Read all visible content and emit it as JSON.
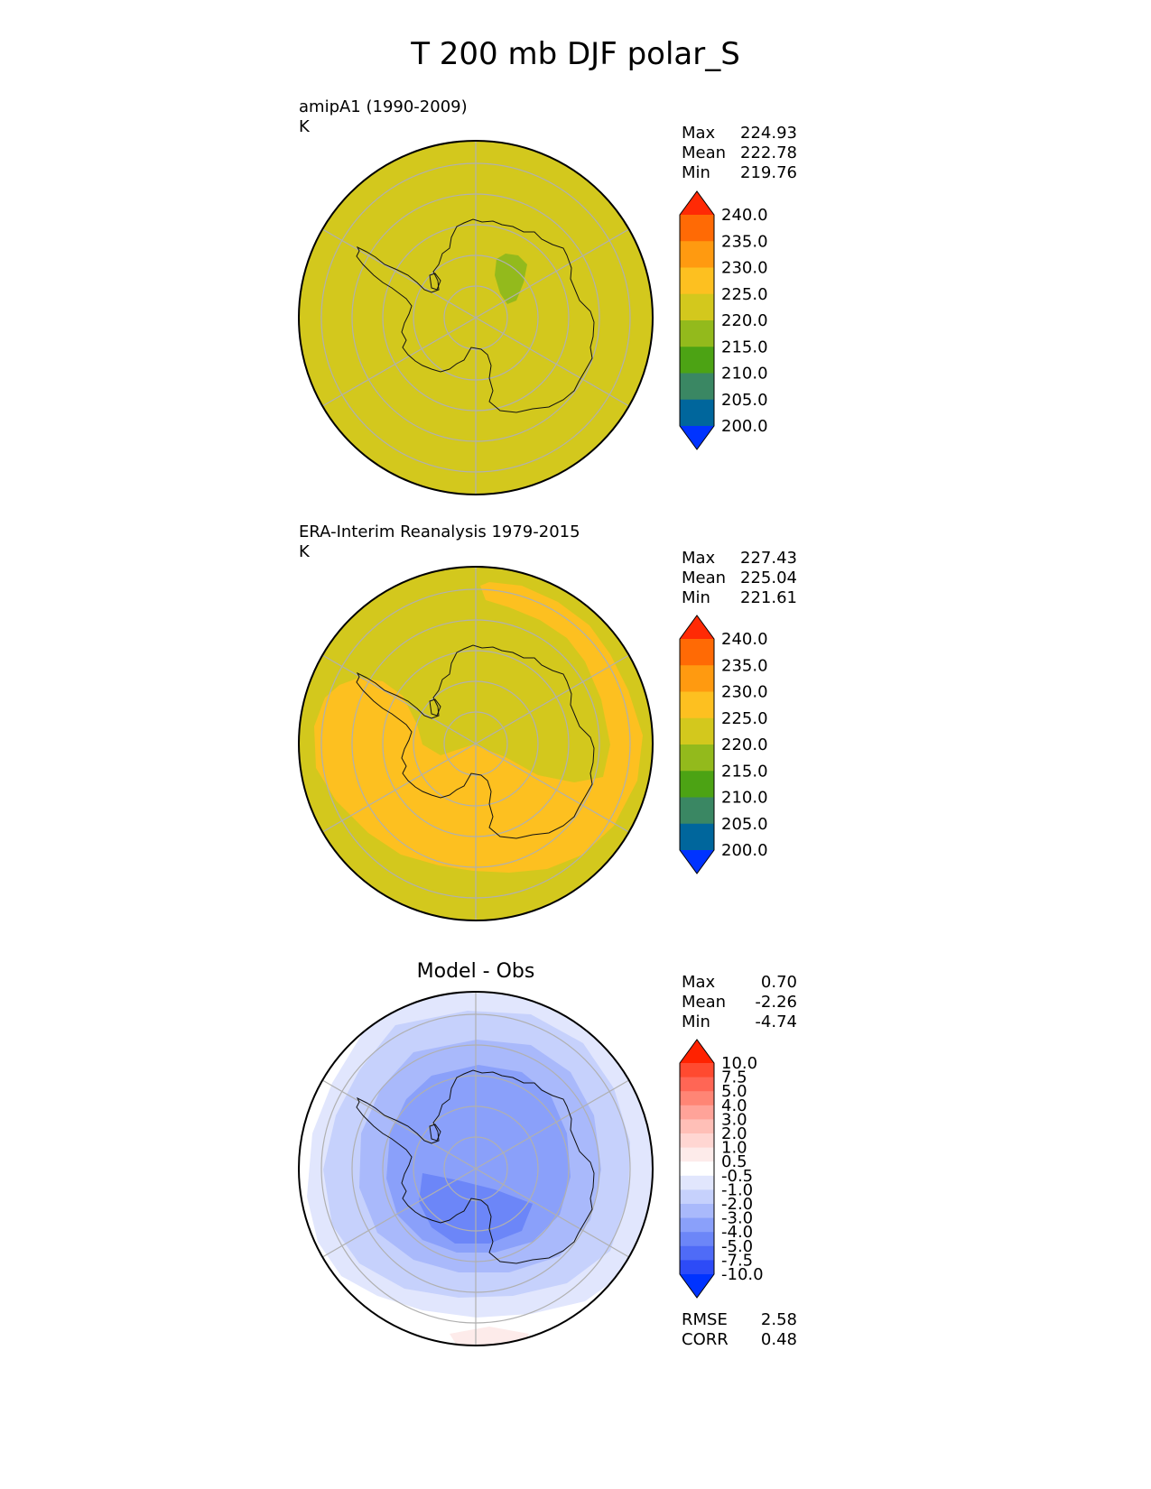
{
  "title": "T 200 mb DJF polar_S",
  "panels": [
    {
      "label": "amipA1 (1990-2009)",
      "units": "K",
      "center": "",
      "stats": [
        {
          "name": "Max",
          "value": "224.93"
        },
        {
          "name": "Mean",
          "value": "222.78"
        },
        {
          "name": "Min",
          "value": "219.76"
        }
      ]
    },
    {
      "label": "ERA-Interim Reanalysis 1979-2015",
      "units": "K",
      "center": "",
      "stats": [
        {
          "name": "Max",
          "value": "227.43"
        },
        {
          "name": "Mean",
          "value": "225.04"
        },
        {
          "name": "Min",
          "value": "221.61"
        }
      ]
    },
    {
      "label": "",
      "units": "",
      "center": "Model - Obs",
      "stats": [
        {
          "name": "Max",
          "value": "0.70"
        },
        {
          "name": "Mean",
          "value": "-2.26"
        },
        {
          "name": "Min",
          "value": "-4.74"
        }
      ],
      "extra_stats": [
        {
          "name": "RMSE",
          "value": "2.58"
        },
        {
          "name": "CORR",
          "value": "0.48"
        }
      ]
    }
  ],
  "colorbars": {
    "temperature": {
      "ticks": [
        "240.0",
        "235.0",
        "230.0",
        "225.0",
        "220.0",
        "215.0",
        "210.0",
        "205.0",
        "200.0"
      ],
      "colors": [
        "#ff2a05",
        "#ff6a05",
        "#ff9a10",
        "#fdc020",
        "#d3c81d",
        "#93ba1c",
        "#4ca314",
        "#3a8763",
        "#00669c",
        "#0033ff"
      ]
    },
    "difference": {
      "ticks": [
        "10.0",
        "7.5",
        "5.0",
        "4.0",
        "3.0",
        "2.0",
        "1.0",
        "0.5",
        "-0.5",
        "-1.0",
        "-2.0",
        "-3.0",
        "-4.0",
        "-5.0",
        "-7.5",
        "-10.0"
      ],
      "colors": [
        "#ff2200",
        "#ff4a30",
        "#ff6655",
        "#ff8575",
        "#ffa399",
        "#ffbfb7",
        "#ffd6d2",
        "#fdebea",
        "#ffffff",
        "#e1e6fd",
        "#c6d1fc",
        "#a9b9fb",
        "#8aa0fa",
        "#6c86f8",
        "#4f6bf7",
        "#2d4bf7",
        "#0033ff"
      ]
    }
  },
  "chart_data": [
    {
      "type": "heatmap",
      "projection": "south polar stereographic",
      "title": "amipA1 (1990-2009)",
      "units": "K",
      "stats": {
        "max": 224.93,
        "mean": 222.78,
        "min": 219.76
      },
      "colorbar_levels": [
        200,
        205,
        210,
        215,
        220,
        225,
        230,
        235,
        240
      ],
      "field": "nearly uniform 220-225 K everywhere; small 215-220 K patch over East Antarctica"
    },
    {
      "type": "heatmap",
      "projection": "south polar stereographic",
      "title": "ERA-Interim Reanalysis 1979-2015",
      "units": "K",
      "stats": {
        "max": 227.43,
        "mean": 225.04,
        "min": 221.61
      },
      "colorbar_levels": [
        200,
        205,
        210,
        215,
        220,
        225,
        230,
        235,
        240
      ],
      "field": "220-225 K over the pole and outer edge; 225-230 K crescent band around Antarctica"
    },
    {
      "type": "heatmap",
      "projection": "south polar stereographic",
      "title": "Model - Obs",
      "stats": {
        "max": 0.7,
        "mean": -2.26,
        "min": -4.74,
        "rmse": 2.58,
        "corr": 0.48
      },
      "colorbar_levels": [
        -10,
        -7.5,
        -5,
        -4,
        -3,
        -2,
        -1,
        -0.5,
        0.5,
        1,
        2,
        3,
        4,
        5,
        7.5,
        10
      ],
      "field": "negative differences (-1 to -5 K) over Antarctica, near zero at outer edge"
    }
  ]
}
